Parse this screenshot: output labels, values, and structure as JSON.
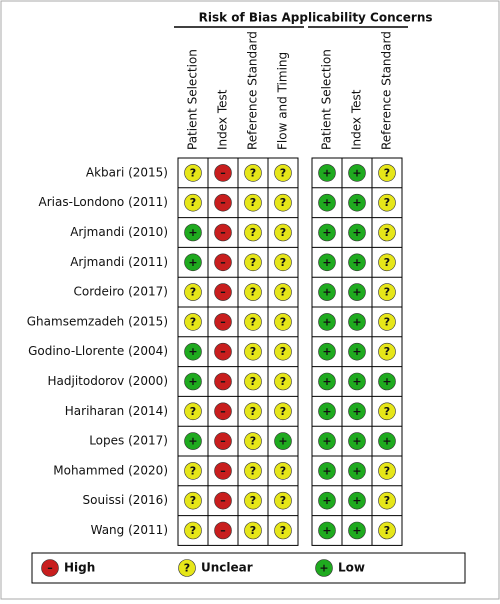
{
  "groups": [
    {
      "title": "Risk of Bias",
      "columns": [
        "Patient Selection",
        "Index Test",
        "Reference Standard",
        "Flow and Timing"
      ]
    },
    {
      "title": "Applicability Concerns",
      "columns": [
        "Patient Selection",
        "Index Test",
        "Reference Standard"
      ]
    }
  ],
  "rows": [
    {
      "study": "Akbari (2015)",
      "ratings": [
        [
          "?",
          "–",
          "?",
          "?"
        ],
        [
          "+",
          "+",
          "?"
        ]
      ]
    },
    {
      "study": "Arias-Londono (2011)",
      "ratings": [
        [
          "?",
          "–",
          "?",
          "?"
        ],
        [
          "+",
          "+",
          "?"
        ]
      ]
    },
    {
      "study": "Arjmandi (2010)",
      "ratings": [
        [
          "+",
          "–",
          "?",
          "?"
        ],
        [
          "+",
          "+",
          "?"
        ]
      ]
    },
    {
      "study": "Arjmandi (2011)",
      "ratings": [
        [
          "+",
          "–",
          "?",
          "?"
        ],
        [
          "+",
          "+",
          "?"
        ]
      ]
    },
    {
      "study": "Cordeiro (2017)",
      "ratings": [
        [
          "?",
          "–",
          "?",
          "?"
        ],
        [
          "+",
          "+",
          "?"
        ]
      ]
    },
    {
      "study": "Ghamsemzadeh (2015)",
      "ratings": [
        [
          "?",
          "–",
          "?",
          "?"
        ],
        [
          "+",
          "+",
          "?"
        ]
      ]
    },
    {
      "study": "Godino-Llorente (2004)",
      "ratings": [
        [
          "+",
          "–",
          "?",
          "?"
        ],
        [
          "+",
          "+",
          "?"
        ]
      ]
    },
    {
      "study": "Hadjitodorov (2000)",
      "ratings": [
        [
          "+",
          "–",
          "?",
          "?"
        ],
        [
          "+",
          "+",
          "+"
        ]
      ]
    },
    {
      "study": "Hariharan (2014)",
      "ratings": [
        [
          "?",
          "–",
          "?",
          "?"
        ],
        [
          "+",
          "+",
          "?"
        ]
      ]
    },
    {
      "study": "Lopes (2017)",
      "ratings": [
        [
          "+",
          "–",
          "?",
          "+"
        ],
        [
          "+",
          "+",
          "+"
        ]
      ]
    },
    {
      "study": "Mohammed (2020)",
      "ratings": [
        [
          "?",
          "–",
          "?",
          "?"
        ],
        [
          "+",
          "+",
          "?"
        ]
      ]
    },
    {
      "study": "Souissi (2016)",
      "ratings": [
        [
          "?",
          "–",
          "?",
          "?"
        ],
        [
          "+",
          "+",
          "?"
        ]
      ]
    },
    {
      "study": "Wang (2011)",
      "ratings": [
        [
          "?",
          "–",
          "?",
          "?"
        ],
        [
          "+",
          "+",
          "?"
        ]
      ]
    }
  ],
  "legend": [
    {
      "symbol": "–",
      "label": "High",
      "color": "#c81e1e"
    },
    {
      "symbol": "?",
      "label": "Unclear",
      "color": "#e6e619"
    },
    {
      "symbol": "+",
      "label": "Low",
      "color": "#1faa1f"
    }
  ]
}
